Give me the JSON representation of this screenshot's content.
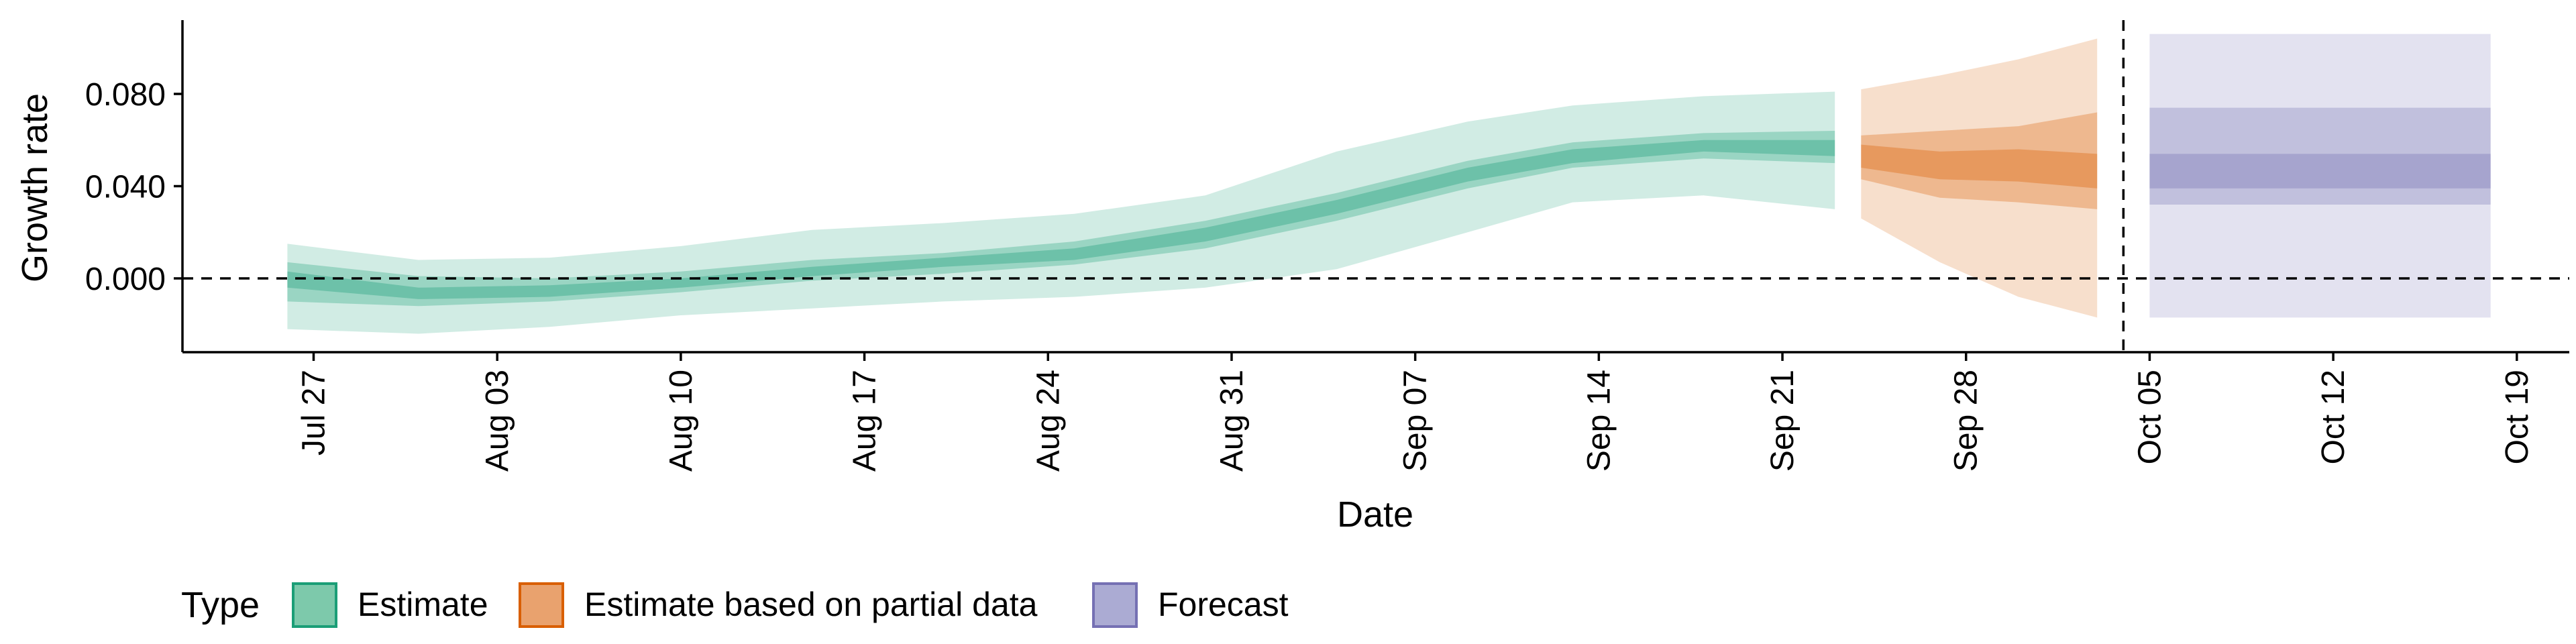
{
  "chart_data": {
    "type": "area",
    "xlabel": "Date",
    "ylabel": "Growth rate",
    "ylim": [
      -0.032,
      0.112
    ],
    "yticks": [
      0.0,
      0.04,
      0.08
    ],
    "ytick_labels": [
      "0.000",
      "0.040",
      "0.080"
    ],
    "xlim": [
      "2020-07-22",
      "2020-10-21"
    ],
    "xticks": [
      "2020-07-27",
      "2020-08-03",
      "2020-08-10",
      "2020-08-17",
      "2020-08-24",
      "2020-08-31",
      "2020-09-07",
      "2020-09-14",
      "2020-09-21",
      "2020-09-28",
      "2020-10-05",
      "2020-10-12",
      "2020-10-19"
    ],
    "xtick_labels": [
      "Jul 27",
      "Aug 03",
      "Aug 10",
      "Aug 17",
      "Aug 24",
      "Aug 31",
      "Sep 07",
      "Sep 14",
      "Sep 21",
      "Sep 28",
      "Oct 05",
      "Oct 12",
      "Oct 19"
    ],
    "hline": 0,
    "forecast_date": "2020-10-04",
    "grid": false,
    "legend_position": "bottom",
    "legend": {
      "title": "Type",
      "items": [
        {
          "label": "Estimate",
          "fill": "#7dc9ab",
          "stroke": "#1b9e77"
        },
        {
          "label": "Estimate based on partial data",
          "fill": "#e9a26e",
          "stroke": "#d95f02"
        },
        {
          "label": "Forecast",
          "fill": "#ababd3",
          "stroke": "#7570b3"
        }
      ]
    },
    "series": [
      {
        "name": "Estimate",
        "color": "#1b9e77",
        "x": [
          "2020-07-26",
          "2020-07-31",
          "2020-08-05",
          "2020-08-10",
          "2020-08-15",
          "2020-08-20",
          "2020-08-25",
          "2020-08-30",
          "2020-09-04",
          "2020-09-09",
          "2020-09-13",
          "2020-09-18",
          "2020-09-23"
        ],
        "median": [
          0.0,
          -0.007,
          -0.006,
          -0.002,
          0.003,
          0.007,
          0.011,
          0.019,
          0.031,
          0.045,
          0.053,
          0.058,
          0.057
        ],
        "lower_90": [
          -0.022,
          -0.024,
          -0.021,
          -0.016,
          -0.013,
          -0.01,
          -0.008,
          -0.004,
          0.004,
          0.02,
          0.033,
          0.036,
          0.03
        ],
        "upper_90": [
          0.015,
          0.008,
          0.009,
          0.014,
          0.021,
          0.024,
          0.028,
          0.036,
          0.055,
          0.068,
          0.075,
          0.079,
          0.081
        ],
        "lower_50": [
          -0.01,
          -0.012,
          -0.01,
          -0.006,
          -0.001,
          0.002,
          0.006,
          0.013,
          0.025,
          0.039,
          0.048,
          0.052,
          0.05
        ],
        "upper_50": [
          0.007,
          0.001,
          0.0,
          0.003,
          0.008,
          0.011,
          0.016,
          0.025,
          0.037,
          0.051,
          0.059,
          0.063,
          0.064
        ],
        "lower_20": [
          -0.004,
          -0.009,
          -0.008,
          -0.004,
          0.001,
          0.005,
          0.008,
          0.016,
          0.028,
          0.042,
          0.05,
          0.055,
          0.053
        ],
        "upper_20": [
          0.003,
          -0.004,
          -0.003,
          0.0,
          0.005,
          0.009,
          0.013,
          0.022,
          0.034,
          0.048,
          0.056,
          0.06,
          0.06
        ]
      },
      {
        "name": "Estimate based on partial data",
        "color": "#d95f02",
        "x": [
          "2020-09-24",
          "2020-09-27",
          "2020-09-30",
          "2020-10-03"
        ],
        "median": [
          0.053,
          0.049,
          0.049,
          0.046
        ],
        "lower_90": [
          0.026,
          0.007,
          -0.008,
          -0.017
        ],
        "upper_90": [
          0.082,
          0.088,
          0.095,
          0.104
        ],
        "lower_50": [
          0.043,
          0.035,
          0.033,
          0.03
        ],
        "upper_50": [
          0.062,
          0.064,
          0.066,
          0.072
        ],
        "lower_20": [
          0.048,
          0.043,
          0.042,
          0.039
        ],
        "upper_20": [
          0.058,
          0.055,
          0.056,
          0.054
        ]
      },
      {
        "name": "Forecast",
        "color": "#7570b3",
        "x": [
          "2020-10-05",
          "2020-10-18"
        ],
        "median": [
          0.047,
          0.047
        ],
        "lower_90": [
          -0.017,
          -0.017
        ],
        "upper_90": [
          0.106,
          0.106
        ],
        "lower_50": [
          0.032,
          0.032
        ],
        "upper_50": [
          0.074,
          0.074
        ],
        "lower_20": [
          0.039,
          0.039
        ],
        "upper_20": [
          0.054,
          0.054
        ]
      }
    ]
  }
}
